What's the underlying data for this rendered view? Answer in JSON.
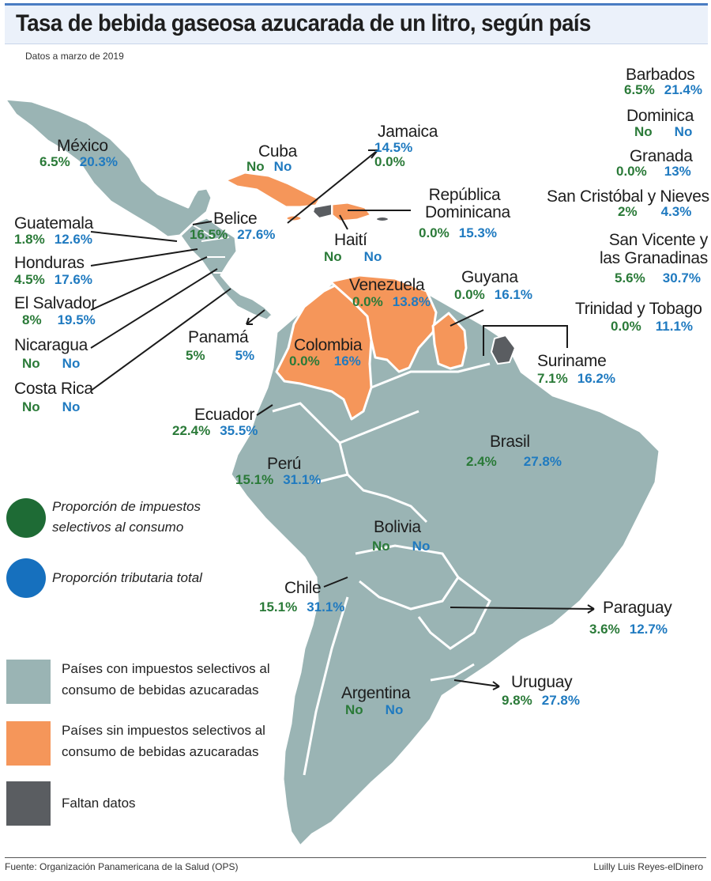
{
  "header": {
    "title": "Tasa de bebida gaseosa azucarada de un litro, según país",
    "subtitle": "Datos a marzo de 2019"
  },
  "footer": {
    "source": "Fuente: Organización Panamericana de la Salud (OPS)",
    "credit": "Luilly Luis Reyes-elDinero"
  },
  "colors": {
    "selective_share": "#1e6b35",
    "total_share": "#1670be",
    "with_tax": "#9ab4b4",
    "without_tax": "#f5965a",
    "no_data": "#5a5d61"
  },
  "legend": {
    "selective_share": "Proporción de impuestos selectivos al consumo",
    "total_share": "Proporción tributaria total",
    "with_tax": "Países con impuestos selectivos al consumo de bebidas azucaradas",
    "without_tax": "Países sin impuestos selectivos al consumo de bebidas azucaradas",
    "no_data": "Faltan datos"
  },
  "countries": {
    "mexico": {
      "name": "México",
      "selective": "6.5%",
      "total": "20.3%",
      "status": "with_tax"
    },
    "cuba": {
      "name": "Cuba",
      "selective": "No",
      "total": "No",
      "status": "without_tax"
    },
    "jamaica": {
      "name": "Jamaica",
      "selective": "0.0%",
      "total": "14.5%",
      "status": "with_tax"
    },
    "rep_dom": {
      "name": "República Dominicana",
      "selective": "0.0%",
      "total": "15.3%",
      "status": "without_tax"
    },
    "haiti": {
      "name": "Haití",
      "selective": "No",
      "total": "No",
      "status": "no_data"
    },
    "guatemala": {
      "name": "Guatemala",
      "selective": "1.8%",
      "total": "12.6%",
      "status": "with_tax"
    },
    "belice": {
      "name": "Belice",
      "selective": "16.5%",
      "total": "27.6%",
      "status": "with_tax"
    },
    "honduras": {
      "name": "Honduras",
      "selective": "4.5%",
      "total": "17.6%",
      "status": "with_tax"
    },
    "el_salvador": {
      "name": "El Salvador",
      "selective": "8%",
      "total": "19.5%",
      "status": "with_tax"
    },
    "nicaragua": {
      "name": "Nicaragua",
      "selective": "No",
      "total": "No",
      "status": "with_tax"
    },
    "costa_rica": {
      "name": "Costa Rica",
      "selective": "No",
      "total": "No",
      "status": "with_tax"
    },
    "panama": {
      "name": "Panamá",
      "selective": "5%",
      "total": "5%",
      "status": "with_tax"
    },
    "venezuela": {
      "name": "Venezuela",
      "selective": "0.0%",
      "total": "13.8%",
      "status": "without_tax"
    },
    "colombia": {
      "name": "Colombia",
      "selective": "0.0%",
      "total": "16%",
      "status": "without_tax"
    },
    "guyana": {
      "name": "Guyana",
      "selective": "0.0%",
      "total": "16.1%",
      "status": "without_tax"
    },
    "suriname": {
      "name": "Suriname",
      "selective": "7.1%",
      "total": "16.2%",
      "status": "with_tax"
    },
    "ecuador": {
      "name": "Ecuador",
      "selective": "22.4%",
      "total": "35.5%",
      "status": "with_tax"
    },
    "peru": {
      "name": "Perú",
      "selective": "15.1%",
      "total": "31.1%",
      "status": "with_tax"
    },
    "brasil": {
      "name": "Brasil",
      "selective": "2.4%",
      "total": "27.8%",
      "status": "with_tax"
    },
    "bolivia": {
      "name": "Bolivia",
      "selective": "No",
      "total": "No",
      "status": "with_tax"
    },
    "chile": {
      "name": "Chile",
      "selective": "15.1%",
      "total": "31.1%",
      "status": "with_tax"
    },
    "paraguay": {
      "name": "Paraguay",
      "selective": "3.6%",
      "total": "12.7%",
      "status": "with_tax"
    },
    "uruguay": {
      "name": "Uruguay",
      "selective": "9.8%",
      "total": "27.8%",
      "status": "with_tax"
    },
    "argentina": {
      "name": "Argentina",
      "selective": "No",
      "total": "No",
      "status": "with_tax"
    },
    "barbados": {
      "name": "Barbados",
      "selective": "6.5%",
      "total": "21.4%",
      "status": "with_tax"
    },
    "dominica": {
      "name": "Dominica",
      "selective": "No",
      "total": "No",
      "status": "with_tax"
    },
    "granada": {
      "name": "Granada",
      "selective": "0.0%",
      "total": "13%",
      "status": "with_tax"
    },
    "san_cristobal": {
      "name": "San Cristóbal y Nieves",
      "selective": "2%",
      "total": "4.3%",
      "status": "with_tax"
    },
    "san_vicente": {
      "name": "San Vicente y las Granadinas",
      "selective": "5.6%",
      "total": "30.7%",
      "status": "with_tax"
    },
    "trinidad": {
      "name": "Trinidad y Tobago",
      "selective": "0.0%",
      "total": "11.1%",
      "status": "with_tax"
    }
  }
}
